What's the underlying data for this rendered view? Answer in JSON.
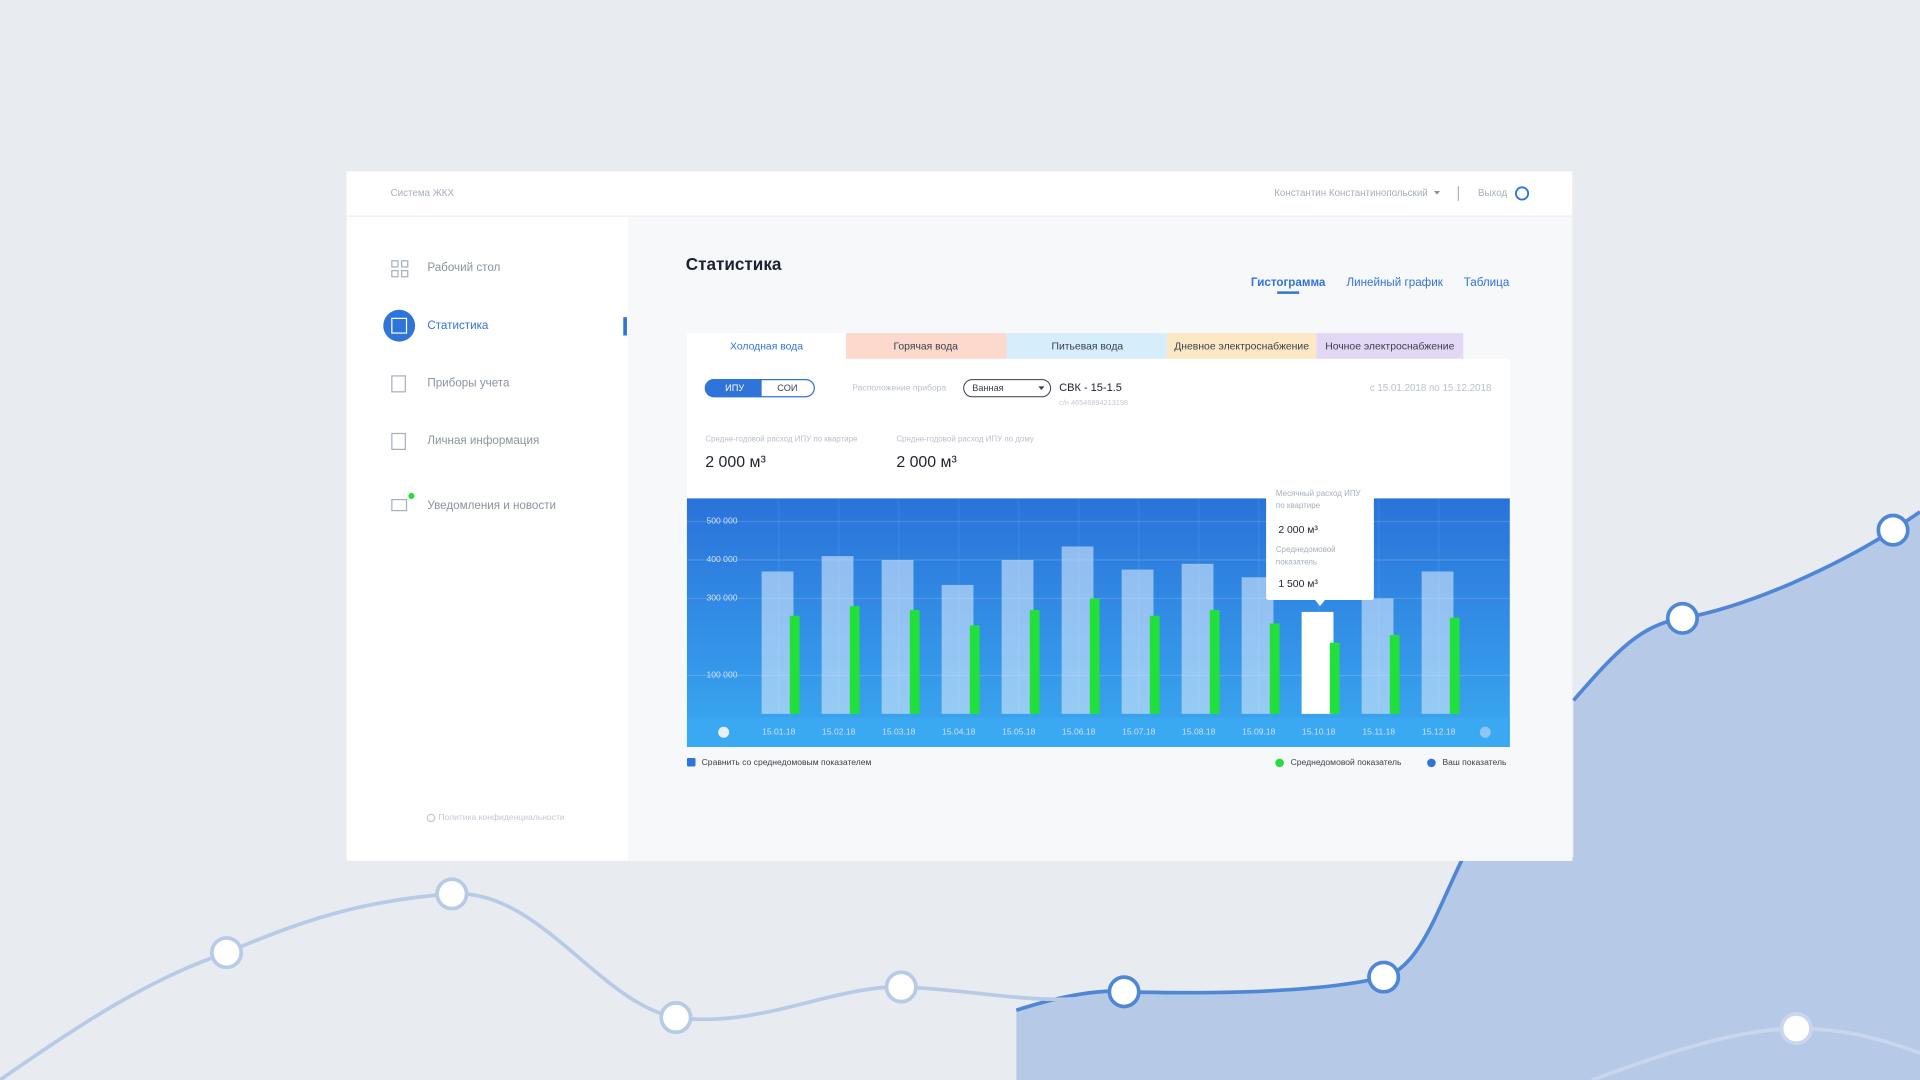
{
  "header": {
    "brand": "Система ЖКХ",
    "user": "Константин Константинопольский",
    "logout": "Выход"
  },
  "sidebar": {
    "items": [
      "Рабочий стол",
      "Статистика",
      "Приборы учета",
      "Личная информация",
      "Уведомления и новости"
    ],
    "privacy": "Политика конфиденциальности"
  },
  "main": {
    "title": "Статистика",
    "views": [
      "Гистограмма",
      "Линейный график",
      "Таблица"
    ],
    "tabs": [
      "Холодная вода",
      "Горячая вода",
      "Питьевая вода",
      "Дневное электроснабжение",
      "Ночное электроснабжение"
    ],
    "toggle": [
      "ИПУ",
      "СОИ"
    ],
    "location_label": "Расположение прибора",
    "location_value": "Ванная",
    "meter": "СВК - 15-1.5",
    "serial": "с/н 46546894213198",
    "period": "с 15.01.2018 по 15.12.2018",
    "stats": [
      {
        "label": "Средне-годовой расход ИПУ по квартире",
        "value": "2 000 м³"
      },
      {
        "label": "Средне-годовой расход ИПУ по дому",
        "value": "2 000 м³"
      }
    ],
    "tooltip": {
      "title": "Месячный расход ИПУ по квартире",
      "value": "2 000 м³",
      "title2": "Среднедомовой показатель",
      "value2": "1 500 м³"
    },
    "compare": "Сравнить со среднедомовым показателем"
  },
  "chart_data": {
    "type": "bar",
    "categories": [
      "15.01.18",
      "15.02.18",
      "15.03.18",
      "15.04.18",
      "15.05.18",
      "15.06.18",
      "15.07.18",
      "15.08.18",
      "15.09.18",
      "15.10.18",
      "15.11.18",
      "15.12.18"
    ],
    "series": [
      {
        "name": "Ваш показатель",
        "color": "#d6e7fc",
        "values": [
          370000,
          410000,
          400000,
          335000,
          400000,
          435000,
          375000,
          390000,
          355000,
          265000,
          300000,
          370000
        ]
      },
      {
        "name": "Среднедомовой показатель",
        "color": "#22e03c",
        "values": [
          255000,
          280000,
          270000,
          230000,
          270000,
          300000,
          255000,
          270000,
          235000,
          185000,
          205000,
          250000
        ]
      }
    ],
    "ylim": [
      0,
      560000
    ],
    "yticks": [
      {
        "value": 100000,
        "label": "100 000"
      },
      {
        "value": 300000,
        "label": "300 000"
      },
      {
        "value": 400000,
        "label": "400 000"
      },
      {
        "value": 500000,
        "label": "500 000"
      }
    ],
    "grid": true
  }
}
